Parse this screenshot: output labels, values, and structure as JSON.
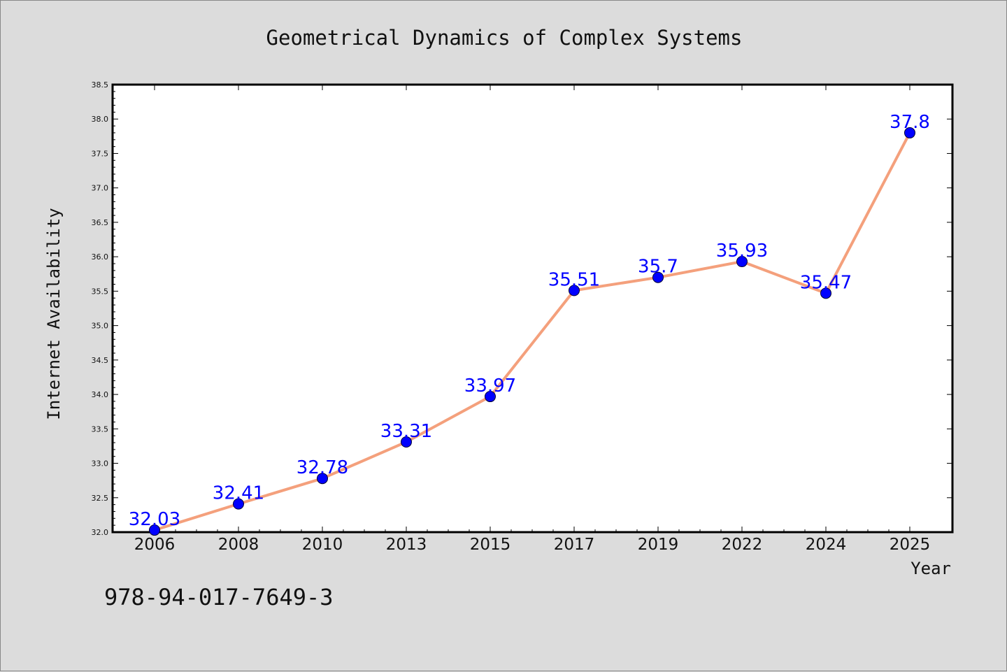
{
  "colors": {
    "background": "#dcdcdc",
    "plot_background": "#ffffff",
    "line": "#f4a07c",
    "marker": "#0000ff",
    "data_label": "#0000ff"
  },
  "footer": {
    "isbn": "978-94-017-7649-3"
  },
  "chart_data": {
    "type": "line",
    "title": "Geometrical Dynamics of Complex Systems",
    "xlabel": "Year",
    "ylabel": "Internet Availability",
    "categories": [
      "2006",
      "2008",
      "2010",
      "2013",
      "2015",
      "2017",
      "2019",
      "2022",
      "2024",
      "2025"
    ],
    "series": [
      {
        "values": [
          32.03,
          32.41,
          32.78,
          33.31,
          33.97,
          35.51,
          35.7,
          35.93,
          35.47,
          37.8
        ],
        "labels": [
          "32.03",
          "32.41",
          "32.78",
          "33.31",
          "33.97",
          "35.51",
          "35.7",
          "35.93",
          "35.47",
          "37.8"
        ]
      }
    ],
    "ylim": [
      32.0,
      38.5
    ],
    "yticks": [
      "32.0",
      "32.5",
      "33.0",
      "33.5",
      "34.0",
      "34.5",
      "35.0",
      "35.5",
      "36.0",
      "36.5",
      "37.0",
      "37.5",
      "38.0",
      "38.5"
    ],
    "ytick_values": [
      32.0,
      32.5,
      33.0,
      33.5,
      34.0,
      34.5,
      35.0,
      35.5,
      36.0,
      36.5,
      37.0,
      37.5,
      38.0,
      38.5
    ],
    "grid": false,
    "legend": "none"
  }
}
